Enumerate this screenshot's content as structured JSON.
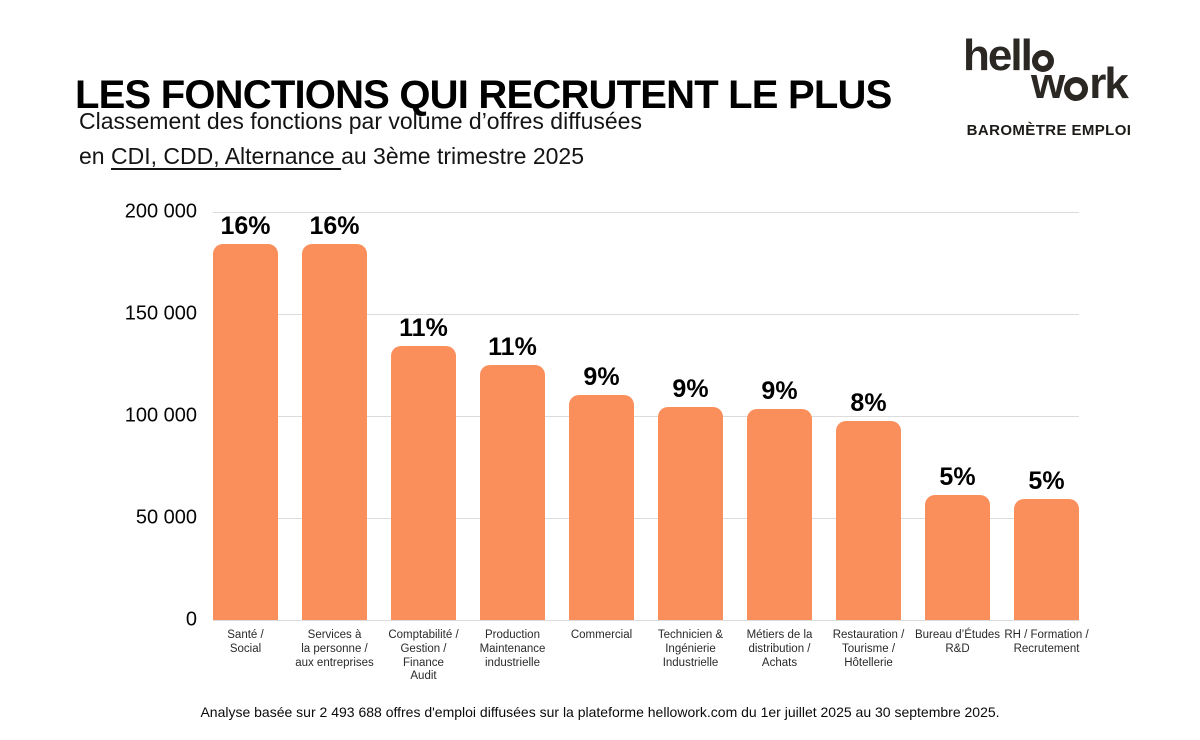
{
  "header": {
    "title": "LES FONCTIONS QUI RECRUTENT LE PLUS",
    "subtitle_line1": "Classement des fonctions par volume d’offres diffusées",
    "subtitle_line2_prefix": "en ",
    "subtitle_line2_underlined": "CDI, CDD, Alternance ",
    "subtitle_line2_suffix": "au 3ème trimestre 2025"
  },
  "logo": {
    "brand_line1": "hell",
    "brand_line2_pre": "w",
    "brand_line2_post": "rk",
    "tagline": "BAROMÈTRE EMPLOI"
  },
  "chart_data": {
    "type": "bar",
    "title": "Classement des fonctions par volume d'offres diffusées en CDI, CDD, Alternance au 3ème trimestre 2025",
    "categories": [
      "Santé /\nSocial",
      "Services à\nla personne /\naux entreprises",
      "Comptabilité /\nGestion /\nFinance\nAudit",
      "Production\nMaintenance\nindustrielle",
      "Commercial",
      "Technicien &\nIngénierie\nIndustrielle",
      "Métiers de la\ndistribution /\nAchats",
      "Restauration /\nTourisme /\nHôtellerie",
      "Bureau d’Études\nR&D",
      "RH / Formation /\nRecrutement"
    ],
    "values": [
      189000,
      185000,
      134500,
      125000,
      110500,
      104500,
      103500,
      97500,
      61500,
      59500
    ],
    "bar_labels": [
      "16%",
      "16%",
      "11%",
      "11%",
      "9%",
      "9%",
      "9%",
      "8%",
      "5%",
      "5%"
    ],
    "xlabel": "",
    "ylabel": "",
    "ylim": [
      0,
      200000
    ],
    "ytick_values": [
      200000,
      150000,
      100000,
      50000,
      0
    ],
    "ytick_labels": [
      "200 000",
      "150 000",
      "100 000",
      "50 000",
      "0"
    ],
    "grid": "horizontal",
    "legend": "none",
    "bar_color": "#FA8F5C"
  },
  "footer": {
    "note": "Analyse basée sur 2 493 688 offres d'emploi diffusées sur la plateforme hellowork.com du 1er juillet 2025 au 30 septembre 2025."
  }
}
